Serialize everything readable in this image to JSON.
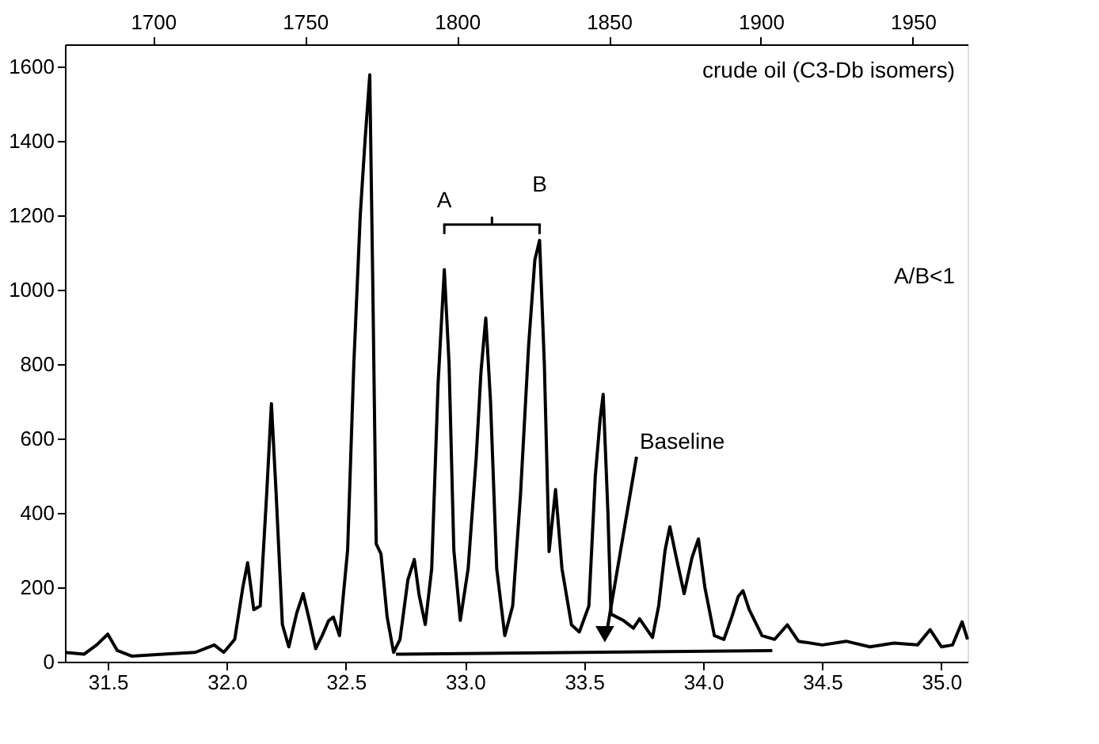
{
  "chart_data": {
    "type": "line",
    "xlim": [
      31.32,
      35.11
    ],
    "xticks": [
      31.5,
      {
        "value": 32,
        "label": "32.0"
      },
      32.5,
      {
        "value": 33,
        "label": "33.0"
      },
      33.5,
      {
        "value": 34,
        "label": "34.0"
      },
      34.5,
      {
        "value": 35,
        "label": "35.0"
      }
    ],
    "x2lim": [
      1671,
      1968
    ],
    "x2ticks": [
      1700,
      1750,
      1800,
      1850,
      1900,
      1950
    ],
    "ylim": [
      0,
      1660
    ],
    "yticks": [
      0,
      200,
      400,
      600,
      800,
      1000,
      1200,
      1400,
      1600
    ],
    "grid": false,
    "marker": "none",
    "line_style": "solid",
    "series": [
      {
        "color": "#000000",
        "x": [
          31.32,
          31.4,
          31.453,
          31.5,
          31.54,
          31.6,
          31.733,
          31.867,
          31.947,
          31.987,
          32.033,
          32.067,
          32.087,
          32.113,
          32.14,
          32.167,
          32.187,
          32.207,
          32.233,
          32.26,
          32.293,
          32.32,
          32.347,
          32.373,
          32.4,
          32.427,
          32.447,
          32.473,
          32.507,
          32.533,
          32.56,
          32.58,
          32.6,
          32.613,
          32.627,
          32.647,
          32.673,
          32.7,
          32.727,
          32.76,
          32.787,
          32.807,
          32.833,
          32.86,
          32.887,
          32.913,
          32.933,
          32.953,
          32.98,
          33.013,
          33.047,
          33.067,
          33.087,
          33.107,
          33.133,
          33.167,
          33.2,
          33.233,
          33.267,
          33.293,
          33.313,
          33.333,
          33.353,
          33.38,
          33.407,
          33.447,
          33.48,
          33.52,
          33.547,
          33.567,
          33.58,
          33.6,
          33.613,
          33.667,
          33.707,
          33.733,
          33.76,
          33.787,
          33.813,
          33.84,
          33.86,
          33.887,
          33.92,
          33.953,
          33.98,
          34.007,
          34.047,
          34.087,
          34.12,
          34.147,
          34.167,
          34.193,
          34.247,
          34.3,
          34.353,
          34.4,
          34.5,
          34.6,
          34.7,
          34.8,
          34.9,
          34.953,
          35.0,
          35.047,
          35.087,
          35.11
        ],
        "values": [
          25,
          20,
          45,
          74,
          30,
          15,
          20,
          25,
          45,
          25,
          60,
          200,
          266,
          140,
          150,
          450,
          694,
          450,
          100,
          40,
          130,
          183,
          110,
          35,
          70,
          110,
          120,
          70,
          300,
          800,
          1200,
          1400,
          1578,
          1000,
          317,
          290,
          120,
          25,
          60,
          220,
          275,
          180,
          100,
          250,
          750,
          1054,
          800,
          300,
          111,
          250,
          550,
          780,
          924,
          700,
          250,
          70,
          150,
          450,
          850,
          1080,
          1133,
          800,
          296,
          463,
          250,
          99,
          80,
          150,
          500,
          650,
          719,
          400,
          128,
          110,
          90,
          115,
          90,
          65,
          150,
          300,
          363,
          280,
          183,
          280,
          330,
          200,
          70,
          60,
          120,
          175,
          191,
          140,
          70,
          60,
          99,
          55,
          45,
          55,
          40,
          50,
          45,
          86,
          40,
          45,
          107,
          60
        ]
      },
      {
        "color": "#000000",
        "x": [
          32.71,
          34.29
        ],
        "values": [
          20,
          30
        ]
      }
    ],
    "annotations": [
      "crude oil (C3-Db isomers)",
      "A/B<1",
      {
        "text": "A",
        "x": 32.913,
        "y": 1054
      },
      {
        "text": "B",
        "x": 33.313,
        "y": 1133
      },
      {
        "text": "Baseline",
        "x": 33.587,
        "y": 40
      }
    ]
  }
}
